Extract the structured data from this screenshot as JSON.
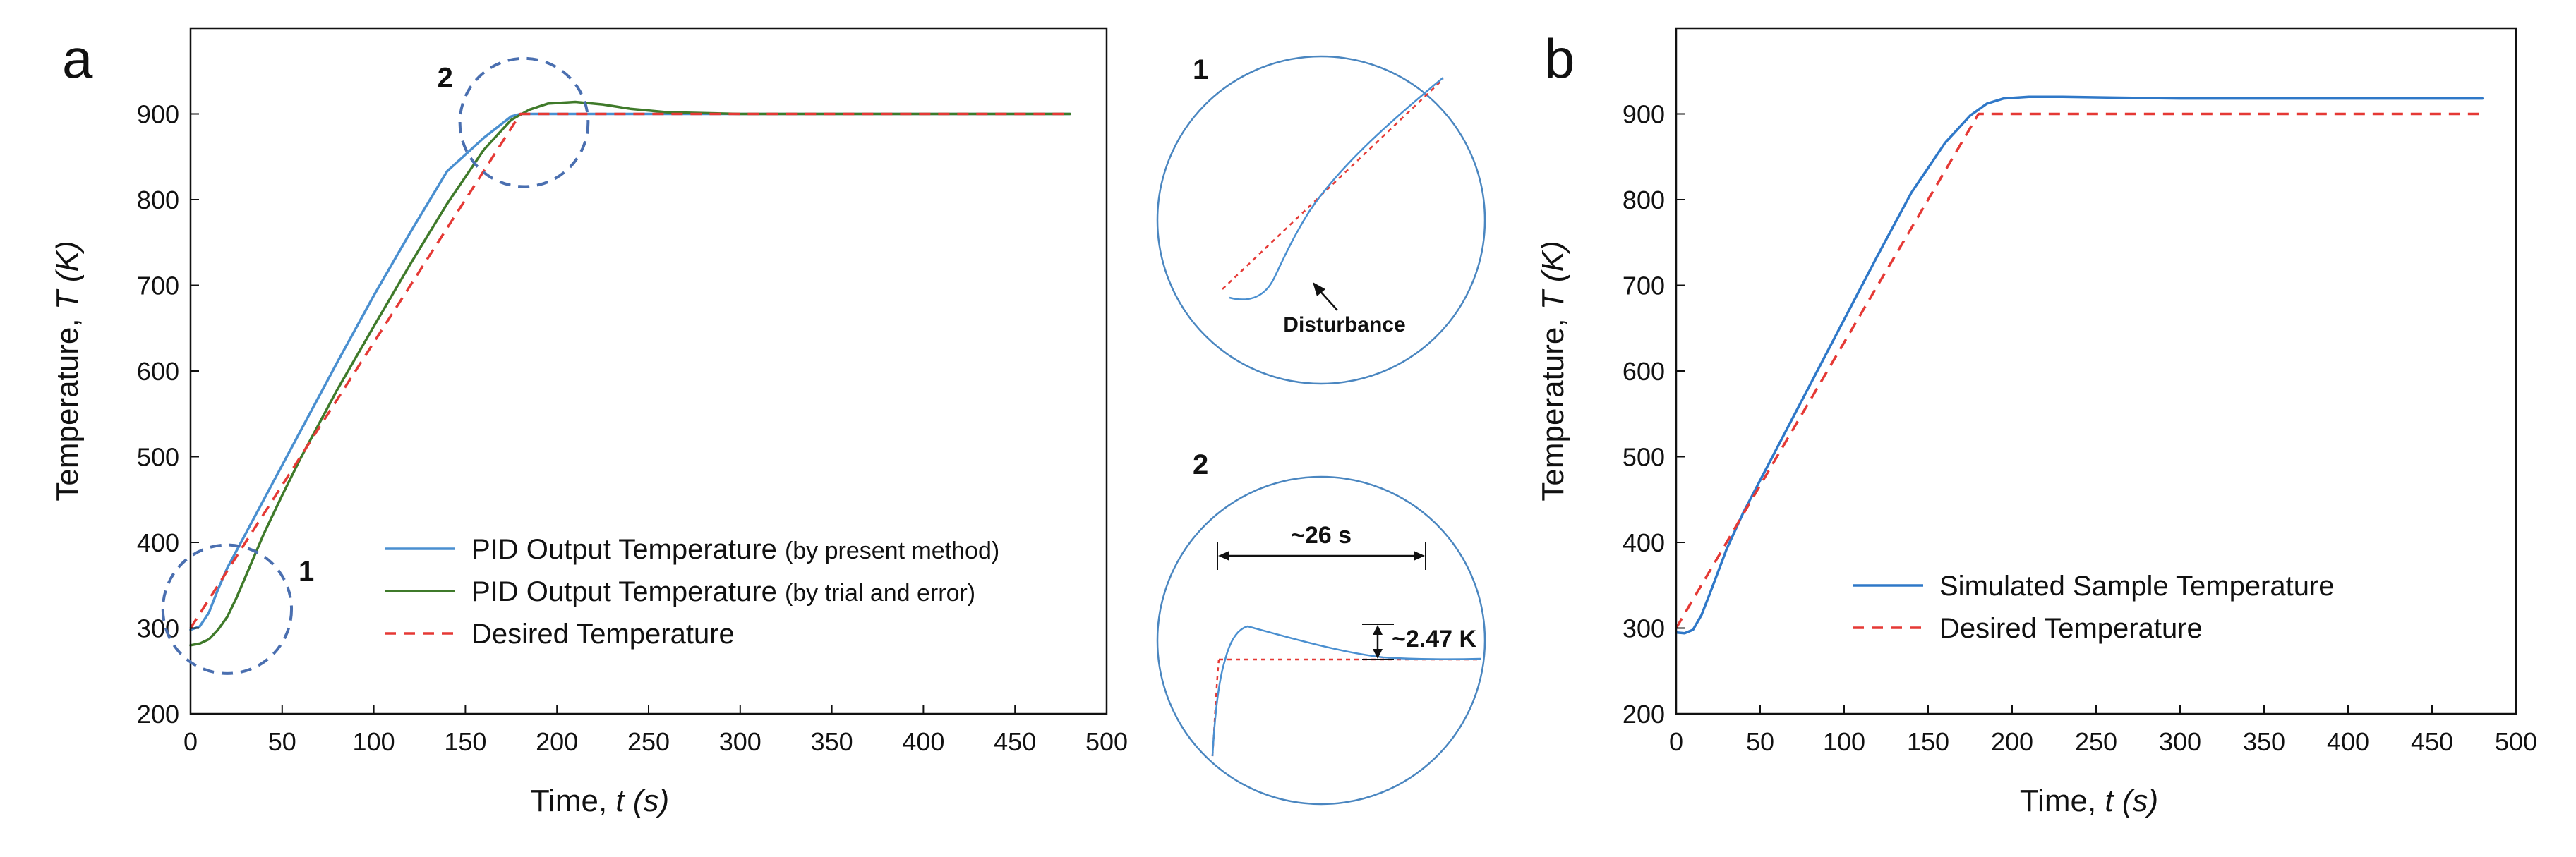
{
  "colors": {
    "pid_present": "#4a8fd0",
    "pid_trial": "#3f7a2a",
    "desired": "#e53935",
    "sim": "#2f78c8",
    "circle_dash": "#4a6fb0",
    "inset_circle": "#4a86c0",
    "axis": "#111111"
  },
  "chart_data": [
    {
      "id": "a",
      "type": "line",
      "panel_label": "a",
      "xlabel_prefix": "Time, ",
      "xlabel_var": "t",
      "xlabel_unit": " (s)",
      "ylabel_prefix": "Temperature, ",
      "ylabel_var": "T",
      "ylabel_unit": " (K)",
      "xlim": [
        0,
        500
      ],
      "ylim": [
        200,
        1000
      ],
      "xticks": [
        0,
        50,
        100,
        150,
        200,
        250,
        300,
        350,
        400,
        450,
        500
      ],
      "yticks": [
        200,
        300,
        400,
        500,
        600,
        700,
        800,
        900
      ],
      "legend": {
        "position": "lower-right",
        "entries": [
          {
            "label": "PID Output Temperature",
            "note": "(by present method)",
            "style": "solid",
            "color_key": "pid_present"
          },
          {
            "label": "PID Output Temperature",
            "note": "(by trial and error)",
            "style": "solid",
            "color_key": "pid_trial"
          },
          {
            "label": "Desired Temperature",
            "note": "",
            "style": "dashed",
            "color_key": "desired"
          }
        ]
      },
      "series": [
        {
          "name": "PID Output Temperature (by present method)",
          "color_key": "pid_present",
          "style": "solid",
          "x": [
            0,
            5,
            10,
            15,
            20,
            30,
            40,
            60,
            80,
            100,
            120,
            140,
            160,
            175,
            180,
            185,
            200,
            480
          ],
          "y": [
            298,
            302,
            318,
            345,
            370,
            410,
            450,
            530,
            610,
            688,
            762,
            833,
            872,
            897,
            900,
            900,
            900,
            900
          ]
        },
        {
          "name": "PID Output Temperature (by trial and error)",
          "color_key": "pid_trial",
          "style": "solid",
          "x": [
            0,
            5,
            10,
            15,
            20,
            25,
            30,
            40,
            50,
            60,
            80,
            100,
            120,
            140,
            160,
            175,
            185,
            195,
            210,
            225,
            240,
            260,
            300,
            480
          ],
          "y": [
            280,
            282,
            287,
            298,
            313,
            335,
            360,
            410,
            455,
            498,
            578,
            652,
            725,
            795,
            858,
            893,
            905,
            912,
            914,
            911,
            906,
            902,
            900,
            900
          ]
        },
        {
          "name": "Desired Temperature",
          "color_key": "desired",
          "style": "dashed",
          "x": [
            0,
            180,
            480
          ],
          "y": [
            300,
            900,
            900
          ]
        }
      ],
      "annotations": [
        {
          "label": "1",
          "cx": 20,
          "cy": 322,
          "rx": 35,
          "ry": 75
        },
        {
          "label": "2",
          "cx": 182,
          "cy": 890,
          "rx": 35,
          "ry": 65
        }
      ]
    },
    {
      "id": "b",
      "type": "line",
      "panel_label": "b",
      "xlabel_prefix": "Time, ",
      "xlabel_var": "t",
      "xlabel_unit": " (s)",
      "ylabel_prefix": "Temperature, ",
      "ylabel_var": "T",
      "ylabel_unit": " (K)",
      "xlim": [
        0,
        500
      ],
      "ylim": [
        200,
        1000
      ],
      "xticks": [
        0,
        50,
        100,
        150,
        200,
        250,
        300,
        350,
        400,
        450,
        500
      ],
      "yticks": [
        200,
        300,
        400,
        500,
        600,
        700,
        800,
        900
      ],
      "legend": {
        "position": "lower-right",
        "entries": [
          {
            "label": "Simulated Sample Temperature",
            "style": "solid",
            "color_key": "sim"
          },
          {
            "label": "Desired Temperature",
            "style": "dashed",
            "color_key": "desired"
          }
        ]
      },
      "series": [
        {
          "name": "Simulated Sample Temperature",
          "color_key": "sim",
          "style": "solid",
          "x": [
            0,
            5,
            10,
            15,
            20,
            30,
            40,
            60,
            80,
            100,
            120,
            140,
            160,
            175,
            185,
            195,
            210,
            230,
            260,
            300,
            480
          ],
          "y": [
            295,
            294,
            298,
            315,
            340,
            392,
            435,
            510,
            585,
            660,
            735,
            808,
            866,
            898,
            912,
            918,
            920,
            920,
            919,
            918,
            918
          ]
        },
        {
          "name": "Desired Temperature",
          "color_key": "desired",
          "style": "dashed",
          "x": [
            0,
            180,
            480
          ],
          "y": [
            300,
            900,
            900
          ]
        }
      ]
    }
  ],
  "insets": {
    "inset1": {
      "label": "1",
      "annotation": "Disturbance"
    },
    "inset2": {
      "label": "2",
      "width_label": "~26 s",
      "height_label": "~2.47 K"
    }
  }
}
